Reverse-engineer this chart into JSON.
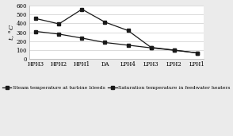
{
  "categories": [
    "HPH3",
    "HPH2",
    "HPH1",
    "DA",
    "LPH4",
    "LPH3",
    "LPH2",
    "LPH1"
  ],
  "steam_temp": [
    455,
    395,
    560,
    415,
    320,
    130,
    100,
    68
  ],
  "sat_temp": [
    310,
    280,
    235,
    185,
    155,
    125,
    98,
    68
  ],
  "ylim": [
    0,
    600
  ],
  "yticks": [
    0,
    100,
    200,
    300,
    400,
    500,
    600
  ],
  "ylabel": "t, °C",
  "line_color": "#1a1a1a",
  "marker": "s",
  "legend1": "Steam temperature at turbine bleeds",
  "legend2": "Saturation temperature in feedwater heaters",
  "bg_color": "#ebebeb",
  "plot_bg": "#ffffff",
  "tick_fontsize": 5.0,
  "label_fontsize": 6.0,
  "legend_fontsize": 4.5
}
